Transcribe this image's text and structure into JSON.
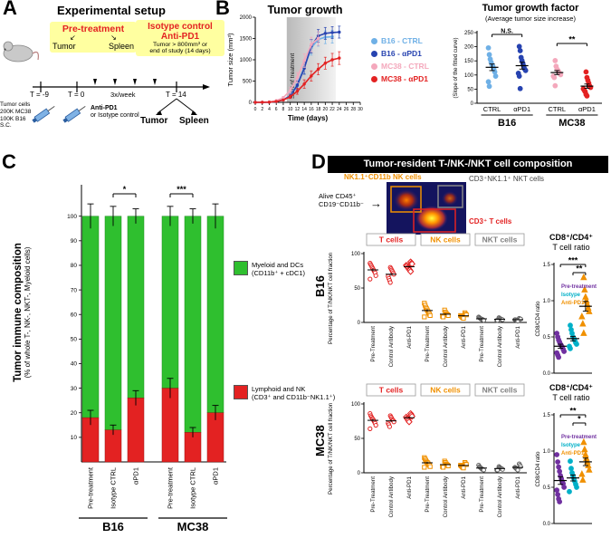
{
  "panelA": {
    "label": "A",
    "title": "Experimental setup",
    "pretreatment": "Pre-treatment",
    "arrow_left": "↙",
    "arrow_right": "↘",
    "pre_tumor": "Tumor",
    "pre_spleen": "Spleen",
    "isotype_line1": "Isotype control",
    "isotype_line2": "Anti-PD1",
    "isotype_line3": "Tumor > 800mm³ or",
    "isotype_line4": "end of study (14 days)",
    "t_minus9": "T = -9",
    "t_zero": "T = 0",
    "freq": "3x/week",
    "t_14": "T = 14",
    "tumor_cells": [
      "Tumor cells",
      "200K MC38",
      "100K B16",
      "S.C."
    ],
    "inject_line1": "Anti-PD1",
    "inject_line2": "or Isotype control",
    "end_tumor": "Tumor",
    "end_spleen": "Spleen"
  },
  "panelB": {
    "label": "B"
  },
  "panelC": {
    "label": "C"
  },
  "panelD": {
    "label": "D",
    "title": "Tumor-resident T-/NK-/NKT cell composition",
    "nk_label": "NK1.1⁺CD11b NK cells",
    "nkt_label": "CD3⁺NK1.1⁺ NKT cells",
    "t_label": "CD3⁺ T cells",
    "gate_line1": "Alive CD45⁺",
    "gate_line2": "CD19⁻CD11b⁻",
    "arrow": "→",
    "row1": "B16",
    "row2": "MC38"
  },
  "chart_data": [
    {
      "id": "tumor_growth",
      "type": "line",
      "title": "Tumor growth",
      "xlabel": "Time (days)",
      "ylabel": "Tumor size (mm³)",
      "xlim": [
        0,
        30
      ],
      "ylim": [
        0,
        2000
      ],
      "x_ticks": [
        0,
        2,
        4,
        6,
        8,
        10,
        12,
        14,
        16,
        18,
        20,
        22,
        24,
        26,
        28,
        30
      ],
      "y_ticks": [
        0,
        500,
        1000,
        1500,
        2000
      ],
      "treatment_shade": {
        "from": 9,
        "to": 23,
        "label": "Start of treatment"
      },
      "x": [
        0,
        2,
        4,
        6,
        8,
        10,
        12,
        14,
        16,
        18,
        20,
        22,
        24
      ],
      "series": [
        {
          "name": "B16 - CTRL",
          "color": "#6fb0e6",
          "values": [
            0,
            2,
            5,
            20,
            60,
            160,
            420,
            820,
            1280,
            1480,
            1530,
            1540,
            null
          ],
          "err": [
            0,
            0,
            5,
            10,
            25,
            60,
            110,
            150,
            170,
            160,
            150,
            150,
            0
          ]
        },
        {
          "name": "B16 - αPD1",
          "color": "#2743b0",
          "values": [
            0,
            2,
            5,
            20,
            60,
            150,
            400,
            800,
            1320,
            1560,
            1620,
            1640,
            1650
          ],
          "err": [
            0,
            0,
            5,
            10,
            25,
            55,
            100,
            140,
            160,
            150,
            140,
            140,
            140
          ]
        },
        {
          "name": "MC38 - CTRL",
          "color": "#f4a8bc",
          "values": [
            0,
            3,
            10,
            40,
            110,
            280,
            580,
            980,
            1360,
            1500,
            null,
            null,
            null
          ],
          "err": [
            0,
            0,
            5,
            15,
            30,
            70,
            120,
            160,
            170,
            160,
            0,
            0,
            0
          ]
        },
        {
          "name": "MC38 - αPD1",
          "color": "#e32222",
          "values": [
            0,
            2,
            5,
            20,
            55,
            130,
            260,
            430,
            620,
            780,
            920,
            1000,
            1040
          ],
          "err": [
            0,
            0,
            5,
            10,
            20,
            40,
            70,
            100,
            120,
            130,
            140,
            150,
            150
          ]
        }
      ]
    },
    {
      "id": "growth_factor",
      "type": "group_scatter",
      "title": "Tumor growth factor",
      "subtitle": "(Average tumor size increase)",
      "ylabel": "(Slope of the fitted curve)",
      "ylim": [
        0,
        250
      ],
      "y_ticks": [
        0,
        50,
        100,
        150,
        200,
        250
      ],
      "m": [
        30,
        8,
        8,
        46
      ],
      "centers_frac": [
        0.12,
        0.36,
        0.64,
        0.88
      ],
      "show_labels": true,
      "groups": [
        {
          "label": "CTRL",
          "color": "#6fb0e6",
          "marker": "circle",
          "points": [
            196,
            172,
            156,
            145,
            136,
            130,
            121,
            111,
            96,
            76,
            60
          ]
        },
        {
          "label": "αPD1",
          "color": "#2743b0",
          "marker": "circle",
          "points": [
            201,
            186,
            162,
            151,
            141,
            131,
            121,
            116,
            106,
            96,
            52
          ]
        },
        {
          "label": "CTRL",
          "color": "#f4a8bc",
          "marker": "circle",
          "points": [
            151,
            131,
            121,
            116,
            111,
            106,
            101,
            96,
            91,
            62
          ]
        },
        {
          "label": "αPD1",
          "color": "#e32222",
          "marker": "circle",
          "points": [
            111,
            91,
            81,
            71,
            61,
            56,
            51,
            46,
            41,
            31,
            26
          ]
        }
      ],
      "group_sets": [
        {
          "label": "B16",
          "from": 0,
          "to": 1
        },
        {
          "label": "MC38",
          "from": 2,
          "to": 3
        }
      ],
      "sig": [
        {
          "from": 0,
          "to": 1,
          "label": "N.S.",
          "dy": 2
        },
        {
          "from": 2,
          "to": 3,
          "label": "**",
          "dy": 12
        }
      ]
    },
    {
      "id": "immune_composition",
      "type": "stacked_bar",
      "ylabel_main": "Tumor immune composition",
      "ylabel_sub": "(% of whole T-, NK-, NKT-, Myeloid cells)",
      "ylim": [
        0,
        100
      ],
      "y_ticks": [
        10,
        20,
        30,
        40,
        50,
        60,
        70,
        80,
        90,
        100
      ],
      "categories": [
        "Pre-treatment",
        "Isotype CTRL",
        "αPD1",
        "Pre-treatment",
        "Isotype CTRL",
        "αPD1"
      ],
      "red_values": [
        18,
        13,
        26,
        30,
        12,
        20
      ],
      "red_err": [
        3,
        2,
        3,
        4,
        2,
        3
      ],
      "top_err": [
        5,
        4,
        3,
        4,
        3,
        5
      ],
      "colors": {
        "green": "#2fbf2f",
        "red": "#e32222"
      },
      "group_sets": [
        {
          "label": "B16",
          "from": 0,
          "to": 2
        },
        {
          "label": "MC38",
          "from": 3,
          "to": 5
        }
      ],
      "sig": [
        {
          "from": 1,
          "to": 2,
          "label": "*"
        },
        {
          "from": 3,
          "to": 4,
          "label": "***"
        }
      ],
      "legend": [
        {
          "color": "#2fbf2f",
          "line1": "Myeloid and DCs",
          "line2": "(CD11b⁺ + cDC1)"
        },
        {
          "color": "#e32222",
          "line1": "Lymphoid and NK",
          "line2": "(CD3⁺ and CD11b⁻NK1.1⁺)"
        }
      ]
    },
    {
      "id": "b16_tnknkt",
      "type": "panel_scatter",
      "ylabel": "Percentage of T/NK/NKT cell fraction",
      "ylim": [
        0,
        100
      ],
      "y_ticks": [
        0,
        50,
        100
      ],
      "x_labels": [
        "Pre-Treatment",
        "Control Antibody",
        "Anti-PD1"
      ],
      "columns": [
        {
          "header": "T cells",
          "header_color": "#e32222",
          "color": "#e32222",
          "marker": "circle",
          "markers": [
            "circle",
            "circle",
            "diamond"
          ],
          "groups": [
            [
              86,
              84,
              82,
              80,
              78,
              76,
              74,
              72,
              68,
              63
            ],
            [
              80,
              78,
              76,
              74,
              72,
              70,
              67,
              64,
              61,
              58
            ],
            [
              88,
              86,
              85,
              83,
              82,
              80,
              79,
              77,
              76,
              74
            ]
          ]
        },
        {
          "header": "NK cells",
          "header_color": "#f09000",
          "color": "#f09000",
          "marker": "square",
          "groups": [
            [
              28,
              25,
              22,
              20,
              18,
              16,
              14,
              12,
              10,
              8
            ],
            [
              18,
              15,
              13,
              12,
              11,
              10,
              9,
              8
            ],
            [
              14,
              12,
              11,
              10,
              9,
              8,
              7,
              6
            ]
          ]
        },
        {
          "header": "NKT cells",
          "header_color": "#808080",
          "color": "#606060",
          "marker": "circle",
          "groups": [
            [
              8,
              7,
              6,
              5,
              5,
              4,
              4,
              3
            ],
            [
              7,
              6,
              5,
              5,
              4,
              4,
              3,
              3
            ],
            [
              6,
              5,
              5,
              4,
              4,
              3,
              3,
              2
            ]
          ]
        }
      ]
    },
    {
      "id": "b16_ratio",
      "type": "group_scatter",
      "title_line1": "CD8⁺/CD4⁺",
      "title_line2": "T cell ratio",
      "ylabel": "CD8/CD4 ratio",
      "ylim": [
        0,
        1.5
      ],
      "y_ticks": [
        0,
        0.5,
        1.0,
        1.5
      ],
      "tick_fmt": "1dp",
      "m": [
        24,
        21,
        12,
        10
      ],
      "centers_frac": [
        0.17,
        0.5,
        0.83
      ],
      "groups": [
        {
          "label": "Pre-treatment",
          "color": "#7030a0",
          "marker": "circle",
          "points": [
            0.55,
            0.5,
            0.46,
            0.43,
            0.4,
            0.38,
            0.36,
            0.33,
            0.3,
            0.28,
            0.25,
            0.22
          ]
        },
        {
          "label": "Isotype",
          "color": "#00b0c8",
          "marker": "circle",
          "points": [
            0.66,
            0.6,
            0.55,
            0.5,
            0.48,
            0.45,
            0.42,
            0.4,
            0.37,
            0.34
          ]
        },
        {
          "label": "Anti-PD1",
          "color": "#f09000",
          "marker": "triangle",
          "points": [
            1.32,
            1.15,
            1.05,
            1.0,
            0.95,
            0.9,
            0.85,
            0.78,
            0.68,
            0.55
          ]
        }
      ],
      "sig": [
        {
          "from": 0,
          "to": 2,
          "label": "***",
          "dy": 0
        },
        {
          "from": 1,
          "to": 2,
          "label": "**",
          "dy": 9
        }
      ],
      "legend": [
        {
          "label": "Pre-treatment",
          "color": "#7030a0"
        },
        {
          "label": "Isotype",
          "color": "#00b0c8"
        },
        {
          "label": "Anti-PD1",
          "color": "#f09000"
        }
      ]
    },
    {
      "id": "mc38_tnknkt",
      "type": "panel_scatter",
      "ylabel": "Percentage of T/NK/NKT cell fraction",
      "ylim": [
        0,
        100
      ],
      "y_ticks": [
        0,
        50,
        100
      ],
      "x_labels": [
        "Pre-Treatment",
        "Control Antibody",
        "Anti-PD1"
      ],
      "columns": [
        {
          "header": "T cells",
          "header_color": "#e32222",
          "color": "#e32222",
          "marker": "circle",
          "markers": [
            "circle",
            "circle",
            "diamond"
          ],
          "groups": [
            [
              86,
              83,
              81,
              79,
              78,
              76,
              74,
              72,
              69,
              64
            ],
            [
              83,
              81,
              79,
              77,
              76,
              74,
              72,
              70,
              67
            ],
            [
              86,
              84,
              82,
              81,
              79,
              78,
              76,
              74
            ]
          ]
        },
        {
          "header": "NK cells",
          "header_color": "#f09000",
          "color": "#f09000",
          "marker": "square",
          "groups": [
            [
              22,
              20,
              18,
              16,
              15,
              14,
              12,
              11,
              9,
              8
            ],
            [
              17,
              15,
              13,
              12,
              11,
              10,
              9,
              8
            ],
            [
              15,
              13,
              12,
              11,
              10,
              9,
              8,
              7
            ]
          ]
        },
        {
          "header": "NKT cells",
          "header_color": "#808080",
          "color": "#606060",
          "marker": "circle",
          "groups": [
            [
              11,
              9,
              8,
              7,
              6,
              5,
              5,
              4
            ],
            [
              9,
              8,
              7,
              6,
              6,
              5,
              4,
              4
            ],
            [
              13,
              11,
              9,
              8,
              7,
              6,
              5,
              4
            ]
          ]
        }
      ]
    },
    {
      "id": "mc38_ratio",
      "type": "group_scatter",
      "title_line1": "CD8⁺/CD4⁺",
      "title_line2": "T cell ratio",
      "ylabel": "CD8/CD4 ratio",
      "ylim": [
        0,
        1.5
      ],
      "y_ticks": [
        0,
        0.5,
        1.0,
        1.5
      ],
      "tick_fmt": "1dp",
      "m": [
        24,
        21,
        12,
        10
      ],
      "centers_frac": [
        0.17,
        0.5,
        0.83
      ],
      "groups": [
        {
          "label": "Pre-treatment",
          "color": "#7030a0",
          "marker": "circle",
          "points": [
            0.95,
            0.85,
            0.78,
            0.72,
            0.66,
            0.62,
            0.58,
            0.55,
            0.5,
            0.46,
            0.4,
            0.34,
            0.3
          ]
        },
        {
          "label": "Isotype",
          "color": "#00b0c8",
          "marker": "circle",
          "points": [
            0.86,
            0.76,
            0.7,
            0.66,
            0.62,
            0.58,
            0.54,
            0.5,
            0.44
          ]
        },
        {
          "label": "Anti-PD1",
          "color": "#f09000",
          "marker": "triangle",
          "points": [
            1.12,
            1.02,
            0.95,
            0.9,
            0.85,
            0.8,
            0.74,
            0.68,
            0.6
          ]
        }
      ],
      "sig": [
        {
          "from": 0,
          "to": 2,
          "label": "**",
          "dy": 0
        },
        {
          "from": 1,
          "to": 2,
          "label": "*",
          "dy": 9
        }
      ],
      "legend": [
        {
          "label": "Pre-treatment",
          "color": "#7030a0"
        },
        {
          "label": "Isotype",
          "color": "#00b0c8"
        },
        {
          "label": "Anti-PD1",
          "color": "#f09000"
        }
      ]
    }
  ]
}
